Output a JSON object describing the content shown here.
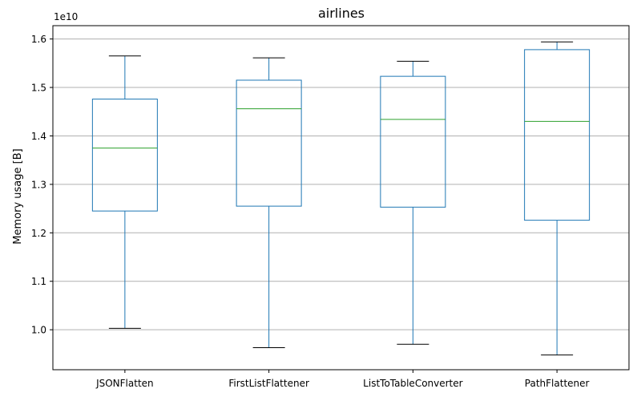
{
  "chart_data": {
    "type": "box",
    "title": "airlines",
    "xlabel": "",
    "ylabel": "Memory usage [B]",
    "y_offset_text": "1e10",
    "y_tick_labels": [
      "1.0",
      "1.1",
      "1.2",
      "1.3",
      "1.4",
      "1.5",
      "1.6"
    ],
    "y_ticks": [
      1.0,
      1.1,
      1.2,
      1.3,
      1.4,
      1.5,
      1.6
    ],
    "ylim": [
      0.9175,
      1.6275
    ],
    "grid": "y",
    "categories": [
      "JSONFlatten",
      "FirstListFlattener",
      "ListToTableConverter",
      "PathFlattener"
    ],
    "boxes": [
      {
        "category": "JSONFlatten",
        "whisker_low": 1.003,
        "q1": 1.245,
        "median": 1.375,
        "q3": 1.476,
        "whisker_high": 1.565
      },
      {
        "category": "FirstListFlattener",
        "whisker_low": 0.963,
        "q1": 1.255,
        "median": 1.456,
        "q3": 1.515,
        "whisker_high": 1.561
      },
      {
        "category": "ListToTableConverter",
        "whisker_low": 0.97,
        "q1": 1.253,
        "median": 1.434,
        "q3": 1.523,
        "whisker_high": 1.554
      },
      {
        "category": "PathFlattener",
        "whisker_low": 0.948,
        "q1": 1.226,
        "median": 1.43,
        "q3": 1.578,
        "whisker_high": 1.594
      }
    ],
    "colors": {
      "box": "#1f77b4",
      "median": "#2ca02c",
      "whisker_cap": "#000000",
      "grid": "#b0b0b0",
      "axes": "#000000"
    }
  }
}
